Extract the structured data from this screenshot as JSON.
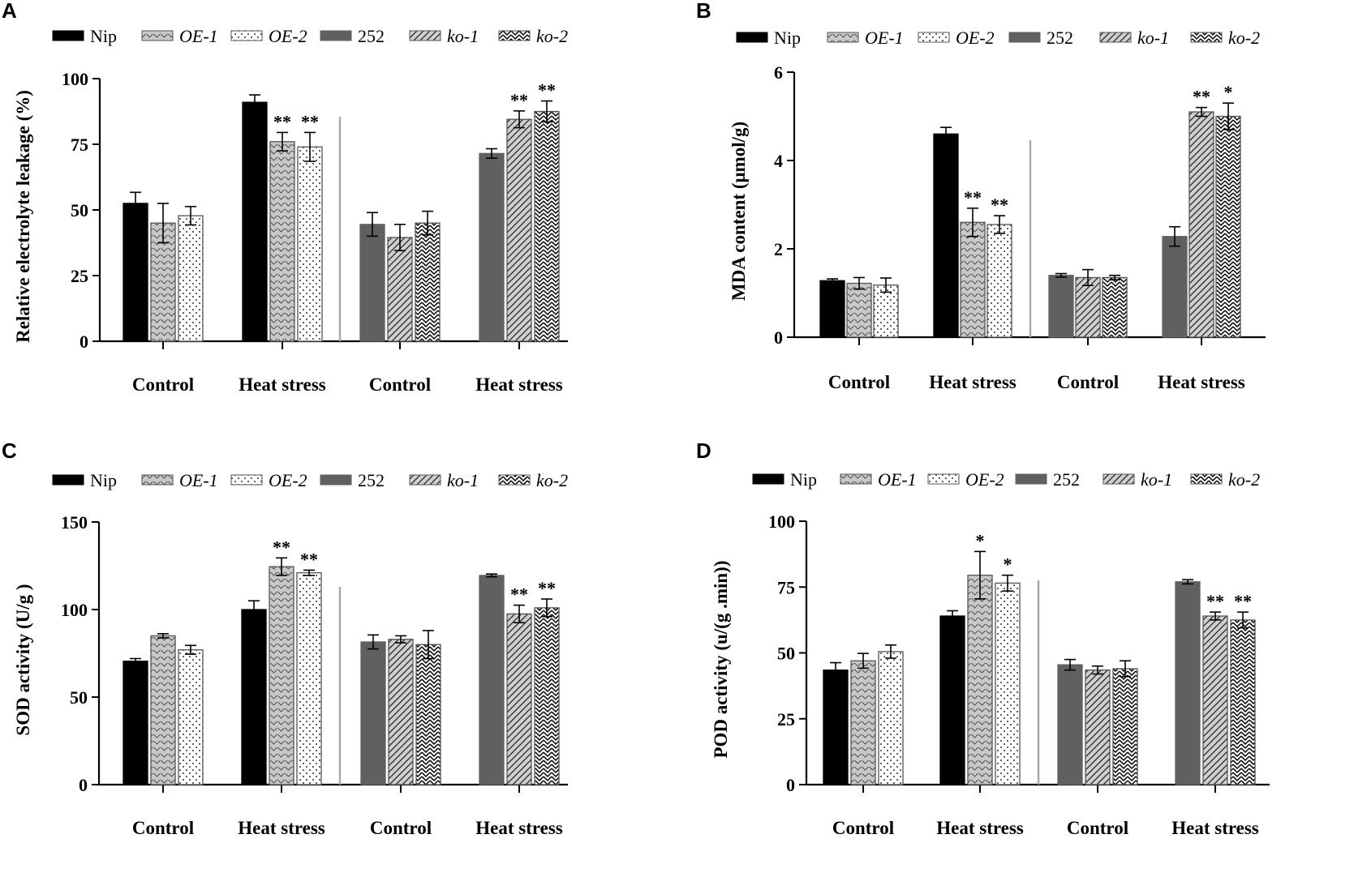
{
  "series_styles": [
    {
      "name": "Nip",
      "italic": false,
      "fill": "#000000",
      "pattern": "solid"
    },
    {
      "name": "OE-1",
      "italic": true,
      "fill": "#c8c8c8",
      "pattern": "chevron"
    },
    {
      "name": "OE-2",
      "italic": true,
      "fill": "#ffffff",
      "pattern": "dots"
    },
    {
      "name": "252",
      "italic": false,
      "fill": "#606060",
      "pattern": "solid"
    },
    {
      "name": "ko-1",
      "italic": true,
      "fill": "#d0d0d0",
      "pattern": "diag"
    },
    {
      "name": "ko-2",
      "italic": true,
      "fill": "#ffffff",
      "pattern": "zigzag"
    }
  ],
  "chart_data": [
    {
      "panel": "A",
      "type": "bar",
      "ylabel": "Relative electrolyte leakage (%)",
      "ylim": [
        0,
        100
      ],
      "yticks": [
        0,
        25,
        50,
        75,
        100
      ],
      "legend": [
        "Nip",
        "OE-1",
        "OE-2",
        "252",
        "ko-1",
        "ko-2"
      ],
      "groups": [
        {
          "label": "Control",
          "series": [
            "Nip",
            "OE-1",
            "OE-2"
          ],
          "values": [
            52.5,
            45,
            47.8
          ],
          "errors": [
            4.2,
            7.5,
            3.5
          ],
          "sig": [
            "",
            "",
            ""
          ]
        },
        {
          "label": "Heat stress",
          "series": [
            "Nip",
            "OE-1",
            "OE-2"
          ],
          "values": [
            91,
            76,
            74
          ],
          "errors": [
            2.8,
            3.5,
            5.5
          ],
          "sig": [
            "",
            "**",
            "**"
          ]
        },
        {
          "label": "Control",
          "series": [
            "252",
            "ko-1",
            "ko-2"
          ],
          "values": [
            44.5,
            39.5,
            45
          ],
          "errors": [
            4.5,
            5,
            4.5
          ],
          "sig": [
            "",
            "",
            ""
          ]
        },
        {
          "label": "Heat stress",
          "series": [
            "252",
            "ko-1",
            "ko-2"
          ],
          "values": [
            71.5,
            84.5,
            87.5
          ],
          "errors": [
            1.8,
            3.2,
            4
          ],
          "sig": [
            "",
            "**",
            "**"
          ]
        }
      ]
    },
    {
      "panel": "B",
      "type": "bar",
      "ylabel": "MDA content (μmol/g)",
      "ylim": [
        0,
        6
      ],
      "yticks": [
        0,
        2,
        4,
        6
      ],
      "legend": [
        "Nip",
        "OE-1",
        "OE-2",
        "252",
        "ko-1",
        "ko-2"
      ],
      "groups": [
        {
          "label": "Control",
          "series": [
            "Nip",
            "OE-1",
            "OE-2"
          ],
          "values": [
            1.28,
            1.22,
            1.18
          ],
          "errors": [
            0.04,
            0.13,
            0.16
          ],
          "sig": [
            "",
            "",
            ""
          ]
        },
        {
          "label": "Heat stress",
          "series": [
            "Nip",
            "OE-1",
            "OE-2"
          ],
          "values": [
            4.6,
            2.6,
            2.55
          ],
          "errors": [
            0.15,
            0.32,
            0.2
          ],
          "sig": [
            "",
            "**",
            "**"
          ]
        },
        {
          "label": "Control",
          "series": [
            "252",
            "ko-1",
            "ko-2"
          ],
          "values": [
            1.4,
            1.35,
            1.35
          ],
          "errors": [
            0.04,
            0.18,
            0.05
          ],
          "sig": [
            "",
            "",
            ""
          ]
        },
        {
          "label": "Heat stress",
          "series": [
            "252",
            "ko-1",
            "ko-2"
          ],
          "values": [
            2.28,
            5.1,
            5.0
          ],
          "errors": [
            0.22,
            0.1,
            0.3
          ],
          "sig": [
            "",
            "**",
            "*"
          ]
        }
      ]
    },
    {
      "panel": "C",
      "type": "bar",
      "ylabel": "SOD activity (U/g )",
      "ylim": [
        0,
        150
      ],
      "yticks": [
        0,
        50,
        100,
        150
      ],
      "legend": [
        "Nip",
        "OE-1",
        "OE-2",
        "252",
        "ko-1",
        "ko-2"
      ],
      "groups": [
        {
          "label": "Control",
          "series": [
            "Nip",
            "OE-1",
            "OE-2"
          ],
          "values": [
            70.5,
            85,
            77
          ],
          "errors": [
            1.5,
            1.2,
            2.5
          ],
          "sig": [
            "",
            "",
            ""
          ]
        },
        {
          "label": "Heat stress",
          "series": [
            "Nip",
            "OE-1",
            "OE-2"
          ],
          "values": [
            100,
            124.5,
            121
          ],
          "errors": [
            5,
            5,
            1.5
          ],
          "sig": [
            "",
            "**",
            "**"
          ]
        },
        {
          "label": "Control",
          "series": [
            "252",
            "ko-1",
            "ko-2"
          ],
          "values": [
            81.5,
            83,
            80
          ],
          "errors": [
            4,
            2,
            8
          ],
          "sig": [
            "",
            "",
            ""
          ]
        },
        {
          "label": "Heat stress",
          "series": [
            "252",
            "ko-1",
            "ko-2"
          ],
          "values": [
            119.5,
            97.5,
            101
          ],
          "errors": [
            0.8,
            5,
            5
          ],
          "sig": [
            "",
            "**",
            "**"
          ]
        }
      ]
    },
    {
      "panel": "D",
      "type": "bar",
      "ylabel": "POD activity (u/(g .min))",
      "ylim": [
        0,
        100
      ],
      "yticks": [
        0,
        25,
        50,
        75,
        100
      ],
      "legend": [
        "Nip",
        "OE-1",
        "OE-2",
        "252",
        "ko-1",
        "ko-2"
      ],
      "groups": [
        {
          "label": "Control",
          "series": [
            "Nip",
            "OE-1",
            "OE-2"
          ],
          "values": [
            43.5,
            47,
            50.5
          ],
          "errors": [
            2.8,
            2.8,
            2.5
          ],
          "sig": [
            "",
            "",
            ""
          ]
        },
        {
          "label": "Heat stress",
          "series": [
            "Nip",
            "OE-1",
            "OE-2"
          ],
          "values": [
            64,
            79.5,
            76.5
          ],
          "errors": [
            2,
            9,
            3
          ],
          "sig": [
            "",
            "*",
            "*"
          ]
        },
        {
          "label": "Control",
          "series": [
            "252",
            "ko-1",
            "ko-2"
          ],
          "values": [
            45.5,
            43.5,
            44
          ],
          "errors": [
            2,
            1.5,
            3
          ],
          "sig": [
            "",
            "",
            ""
          ]
        },
        {
          "label": "Heat stress",
          "series": [
            "252",
            "ko-1",
            "ko-2"
          ],
          "values": [
            77,
            64,
            62.5
          ],
          "errors": [
            0.8,
            1.5,
            3
          ],
          "sig": [
            "",
            "**",
            "**"
          ]
        }
      ]
    }
  ]
}
